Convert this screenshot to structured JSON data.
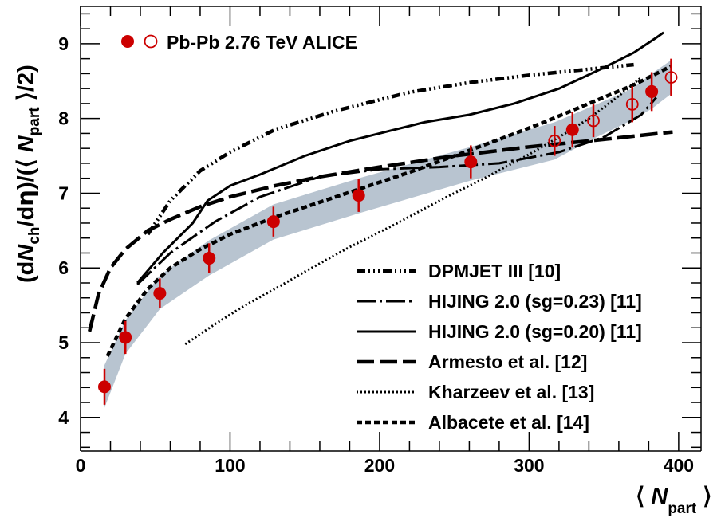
{
  "chart_data": {
    "type": "line",
    "title": "",
    "xlabel": "⟨ N_part ⟩",
    "ylabel": "(dN_ch/dη)/(⟨ N_part ⟩/2)",
    "xlim": [
      0,
      415
    ],
    "ylim": [
      3.55,
      9.5
    ],
    "x_ticks": [
      0,
      100,
      200,
      300,
      400
    ],
    "y_ticks": [
      4,
      5,
      6,
      7,
      8,
      9
    ],
    "grid": false,
    "legend_position": "bottom-right",
    "colors": {
      "data": "#cc0000",
      "band": "#b8c4d0",
      "axis": "#000000"
    },
    "data_series": {
      "name": "Pb-Pb 2.76 TeV ALICE",
      "filled_points": [
        {
          "x": 16,
          "y": 4.41,
          "err": 0.24
        },
        {
          "x": 30,
          "y": 5.07,
          "err": 0.22
        },
        {
          "x": 53,
          "y": 5.66,
          "err": 0.2
        },
        {
          "x": 86,
          "y": 6.13,
          "err": 0.2
        },
        {
          "x": 129,
          "y": 6.62,
          "err": 0.2
        },
        {
          "x": 186,
          "y": 6.97,
          "err": 0.22
        },
        {
          "x": 261,
          "y": 7.42,
          "err": 0.22
        },
        {
          "x": 329,
          "y": 7.85,
          "err": 0.24
        },
        {
          "x": 382,
          "y": 8.36,
          "err": 0.26
        }
      ],
      "open_points": [
        {
          "x": 317,
          "y": 7.7,
          "err": 0.2
        },
        {
          "x": 343,
          "y": 7.97,
          "err": 0.22
        },
        {
          "x": 369,
          "y": 8.19,
          "err": 0.24
        },
        {
          "x": 395,
          "y": 8.55,
          "err": 0.25
        }
      ]
    },
    "band": {
      "x": [
        16,
        30,
        53,
        86,
        129,
        186,
        261,
        317,
        343,
        369,
        382,
        395
      ],
      "upper": [
        4.7,
        5.3,
        5.9,
        6.37,
        6.85,
        7.2,
        7.62,
        7.95,
        8.17,
        8.4,
        8.6,
        8.78
      ],
      "lower": [
        4.13,
        4.85,
        5.45,
        5.9,
        6.38,
        6.73,
        7.17,
        7.45,
        7.73,
        7.98,
        8.13,
        8.33
      ]
    },
    "series": [
      {
        "name": "DPMJET III [10]",
        "dash": "11,4,2,4,2,4,2,4",
        "x": [
          45,
          60,
          80,
          100,
          130,
          170,
          220,
          260,
          300,
          340,
          370
        ],
        "y": [
          6.45,
          6.9,
          7.3,
          7.55,
          7.85,
          8.1,
          8.35,
          8.48,
          8.58,
          8.66,
          8.72
        ]
      },
      {
        "name": "HIJING 2.0 (sg=0.23) [11]",
        "dash": "24,5,3,5",
        "x": [
          38,
          60,
          90,
          120,
          160,
          200,
          240,
          280,
          320,
          350,
          375,
          385
        ],
        "y": [
          5.78,
          6.2,
          6.62,
          6.95,
          7.22,
          7.32,
          7.35,
          7.4,
          7.55,
          7.75,
          8.05,
          8.28
        ]
      },
      {
        "name": "HIJING 2.0 (sg=0.20) [11]",
        "dash": "",
        "x": [
          38,
          55,
          75,
          85,
          100,
          120,
          150,
          180,
          210,
          230,
          260,
          290,
          320,
          350,
          370,
          385,
          390
        ],
        "y": [
          5.8,
          6.2,
          6.6,
          6.9,
          7.1,
          7.25,
          7.5,
          7.7,
          7.85,
          7.95,
          8.05,
          8.2,
          8.4,
          8.68,
          8.88,
          9.08,
          9.15
        ]
      },
      {
        "name": "Armesto et al. [12]",
        "dash": "22,7",
        "x": [
          6,
          12,
          20,
          30,
          45,
          60,
          80,
          100,
          130,
          160,
          200,
          250,
          300,
          350,
          396
        ],
        "y": [
          5.15,
          5.65,
          6.0,
          6.25,
          6.5,
          6.65,
          6.82,
          6.95,
          7.1,
          7.22,
          7.35,
          7.5,
          7.62,
          7.72,
          7.82
        ]
      },
      {
        "name": "Kharzeev et al. [13]",
        "dash": "2,3",
        "x": [
          70,
          90,
          110,
          130,
          150,
          180,
          210,
          240,
          270,
          300,
          320,
          340,
          360,
          375
        ],
        "y": [
          4.98,
          5.25,
          5.5,
          5.72,
          5.95,
          6.28,
          6.58,
          6.9,
          7.2,
          7.52,
          7.75,
          8.0,
          8.3,
          8.55
        ]
      },
      {
        "name": "Albacete et al. [14]",
        "dash": "7,4",
        "x": [
          18,
          30,
          45,
          60,
          80,
          100,
          130,
          160,
          190,
          220,
          250,
          280,
          310,
          340,
          370,
          395
        ],
        "y": [
          4.82,
          5.32,
          5.72,
          6.0,
          6.25,
          6.45,
          6.68,
          6.88,
          7.08,
          7.28,
          7.5,
          7.72,
          7.95,
          8.2,
          8.45,
          8.7
        ]
      }
    ]
  }
}
